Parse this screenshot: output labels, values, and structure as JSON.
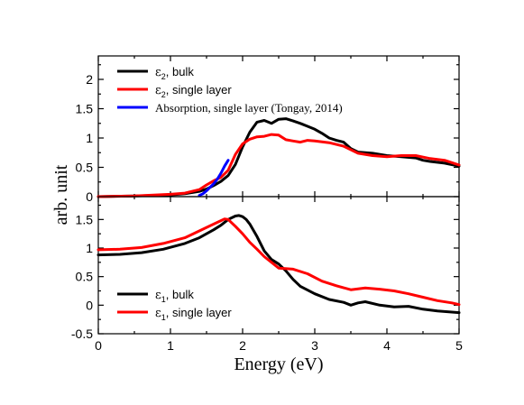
{
  "chart_data": [
    {
      "type": "line",
      "panel": "top",
      "xlim": [
        0,
        5
      ],
      "ylim": [
        0,
        2.4
      ],
      "xticks": [
        "0",
        "1",
        "2",
        "3",
        "4",
        "5"
      ],
      "yticks": [
        "0",
        "0.5",
        "1",
        "1.5",
        "2"
      ],
      "ytick_values": [
        0,
        0.5,
        1,
        1.5,
        2
      ],
      "series": [
        {
          "name_base": "ε",
          "name_sub": "2",
          "name_rest": ", bulk",
          "color": "#000000",
          "x": [
            0,
            0.5,
            1.0,
            1.2,
            1.4,
            1.5,
            1.6,
            1.7,
            1.8,
            1.9,
            2.0,
            2.1,
            2.2,
            2.3,
            2.4,
            2.5,
            2.6,
            2.7,
            2.8,
            2.9,
            3.0,
            3.1,
            3.2,
            3.3,
            3.4,
            3.5,
            3.6,
            3.8,
            4.0,
            4.2,
            4.4,
            4.5,
            4.6,
            4.8,
            5.0
          ],
          "y": [
            0,
            0.01,
            0.03,
            0.05,
            0.09,
            0.13,
            0.19,
            0.26,
            0.36,
            0.55,
            0.85,
            1.1,
            1.27,
            1.3,
            1.25,
            1.32,
            1.33,
            1.29,
            1.25,
            1.2,
            1.15,
            1.08,
            1.0,
            0.96,
            0.93,
            0.82,
            0.76,
            0.74,
            0.7,
            0.68,
            0.66,
            0.62,
            0.6,
            0.57,
            0.52
          ]
        },
        {
          "name_base": "ε",
          "name_sub": "2",
          "name_rest": ", single layer",
          "color": "#ff0000",
          "x": [
            0,
            0.5,
            1.0,
            1.2,
            1.4,
            1.5,
            1.6,
            1.7,
            1.8,
            1.9,
            2.0,
            2.1,
            2.2,
            2.3,
            2.4,
            2.5,
            2.6,
            2.7,
            2.8,
            2.9,
            3.0,
            3.2,
            3.4,
            3.6,
            3.8,
            4.0,
            4.2,
            4.4,
            4.6,
            4.8,
            5.0
          ],
          "y": [
            0,
            0.01,
            0.04,
            0.06,
            0.12,
            0.2,
            0.27,
            0.33,
            0.45,
            0.72,
            0.9,
            0.98,
            1.02,
            1.03,
            1.06,
            1.05,
            0.97,
            0.95,
            0.93,
            0.96,
            0.95,
            0.92,
            0.86,
            0.74,
            0.7,
            0.68,
            0.7,
            0.7,
            0.65,
            0.62,
            0.54
          ]
        },
        {
          "name": "Absorption, single layer (Tongay, 2014)",
          "color": "#0000ff",
          "x": [
            1.4,
            1.45,
            1.5,
            1.55,
            1.6,
            1.65,
            1.7,
            1.75,
            1.8
          ],
          "y": [
            0.02,
            0.05,
            0.1,
            0.16,
            0.22,
            0.3,
            0.4,
            0.52,
            0.62
          ]
        }
      ]
    },
    {
      "type": "line",
      "panel": "bottom",
      "xlim": [
        0,
        5
      ],
      "ylim": [
        -0.5,
        1.9
      ],
      "xticks": [
        "0",
        "1",
        "2",
        "3",
        "4",
        "5"
      ],
      "yticks": [
        "-0.5",
        "0",
        "0.5",
        "1",
        "1.5"
      ],
      "ytick_values": [
        -0.5,
        0,
        0.5,
        1,
        1.5
      ],
      "xlabel": "Energy (eV)",
      "series": [
        {
          "name_base": "ε",
          "name_sub": "1",
          "name_rest": ", bulk",
          "color": "#000000",
          "x": [
            0,
            0.3,
            0.6,
            0.9,
            1.2,
            1.4,
            1.6,
            1.7,
            1.8,
            1.9,
            1.95,
            2.0,
            2.05,
            2.1,
            2.2,
            2.3,
            2.4,
            2.5,
            2.6,
            2.7,
            2.8,
            3.0,
            3.2,
            3.4,
            3.5,
            3.6,
            3.7,
            3.9,
            4.1,
            4.3,
            4.5,
            4.7,
            5.0
          ],
          "y": [
            0.88,
            0.89,
            0.92,
            0.98,
            1.08,
            1.18,
            1.32,
            1.4,
            1.5,
            1.56,
            1.57,
            1.55,
            1.5,
            1.42,
            1.2,
            0.95,
            0.8,
            0.72,
            0.6,
            0.45,
            0.33,
            0.2,
            0.1,
            0.05,
            0.0,
            0.04,
            0.06,
            0.0,
            -0.03,
            -0.02,
            -0.07,
            -0.1,
            -0.13
          ]
        },
        {
          "name_base": "ε",
          "name_sub": "1",
          "name_rest": ", single layer",
          "color": "#ff0000",
          "x": [
            0,
            0.3,
            0.6,
            0.9,
            1.2,
            1.4,
            1.6,
            1.7,
            1.75,
            1.8,
            1.9,
            2.0,
            2.1,
            2.2,
            2.3,
            2.4,
            2.5,
            2.7,
            2.9,
            3.1,
            3.3,
            3.5,
            3.7,
            3.9,
            4.1,
            4.3,
            4.5,
            4.7,
            4.9,
            5.0
          ],
          "y": [
            0.97,
            0.98,
            1.01,
            1.08,
            1.18,
            1.3,
            1.42,
            1.48,
            1.51,
            1.5,
            1.38,
            1.25,
            1.1,
            0.98,
            0.85,
            0.75,
            0.65,
            0.63,
            0.55,
            0.42,
            0.34,
            0.27,
            0.3,
            0.28,
            0.25,
            0.2,
            0.14,
            0.08,
            0.04,
            0.01
          ]
        }
      ]
    }
  ],
  "ylabel": "arb. unit"
}
